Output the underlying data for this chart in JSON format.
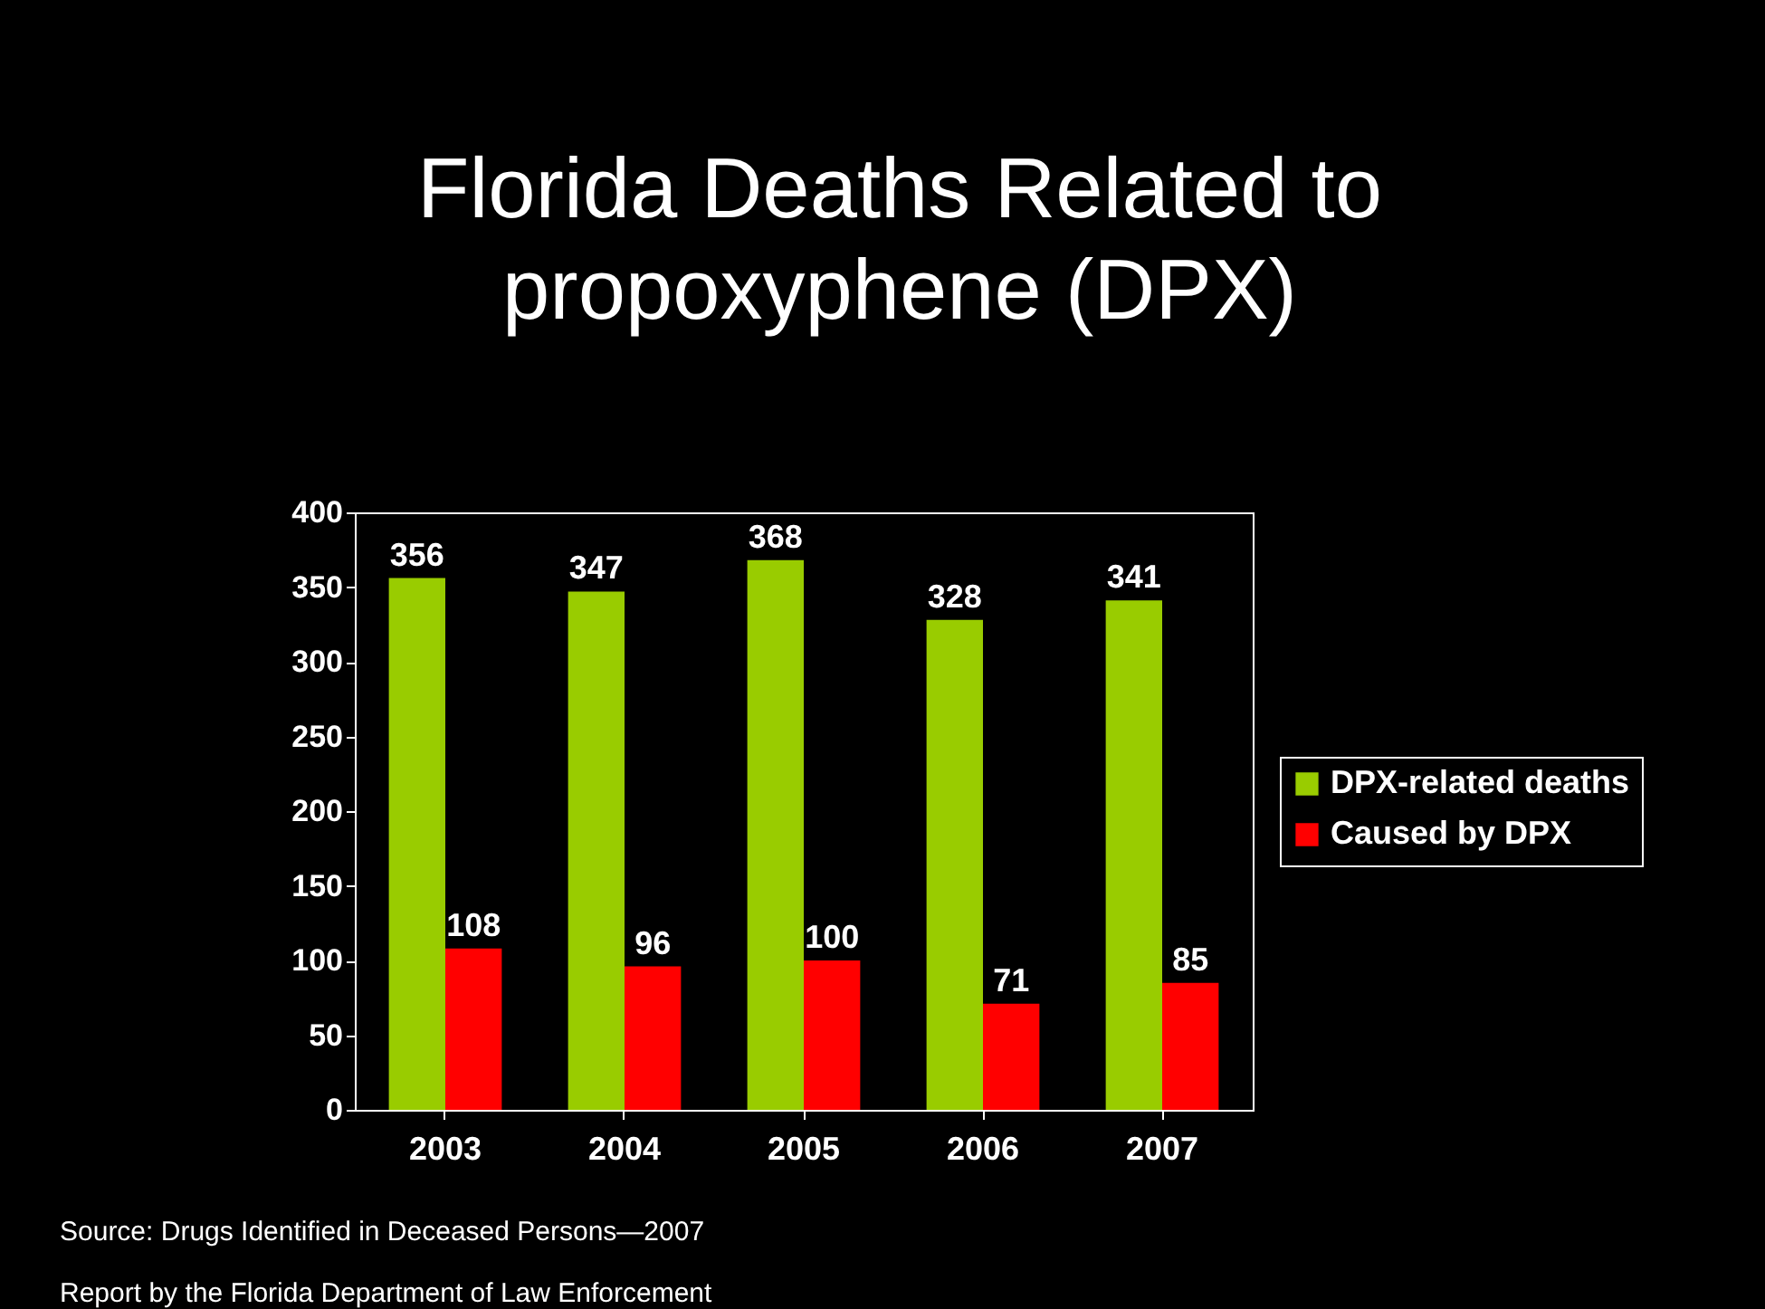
{
  "chart_data": {
    "type": "bar",
    "title": "Florida Deaths Related to propoxyphene (DPX)",
    "categories": [
      "2003",
      "2004",
      "2005",
      "2006",
      "2007"
    ],
    "series": [
      {
        "name": "DPX-related deaths",
        "color": "#99cc00",
        "values": [
          356,
          347,
          368,
          328,
          341
        ]
      },
      {
        "name": "Caused by DPX",
        "color": "#ff0000",
        "values": [
          108,
          96,
          100,
          71,
          85
        ]
      }
    ],
    "ylim": [
      0,
      400
    ],
    "yticks": [
      0,
      50,
      100,
      150,
      200,
      250,
      300,
      350,
      400
    ],
    "grid": false,
    "legend": "right",
    "data_labels": true,
    "annotations": [
      "Source: Drugs Identified in Deceased Persons—2007",
      "Report by the Florida Department of Law Enforcement"
    ]
  }
}
